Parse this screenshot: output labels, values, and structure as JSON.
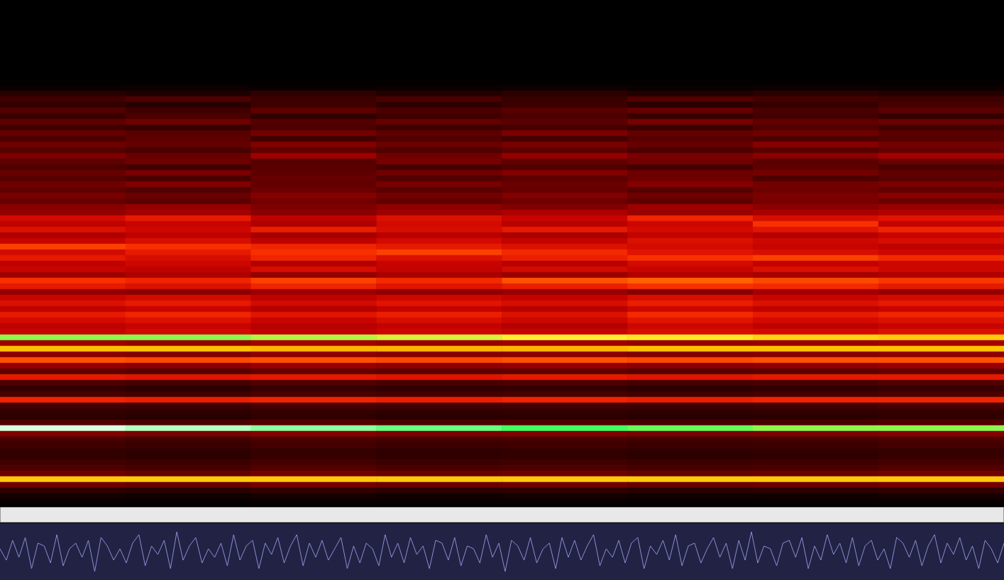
{
  "chart_data": [
    {
      "type": "heatmap",
      "tick_labels": false,
      "color_range": [
        0,
        100
      ],
      "cells": [
        [
          0,
          0,
          0,
          0,
          0,
          0,
          0,
          0
        ],
        [
          0,
          0,
          0,
          0,
          0,
          0,
          0,
          0
        ],
        [
          0,
          0,
          0,
          0,
          0,
          0,
          0,
          0
        ],
        [
          0,
          0,
          0,
          0,
          0,
          0,
          0,
          0
        ],
        [
          0,
          0,
          0,
          0,
          0,
          0,
          0,
          0
        ],
        [
          0,
          0,
          0,
          0,
          0,
          0,
          0,
          0
        ],
        [
          0,
          0,
          0,
          0,
          0,
          0,
          0,
          0
        ],
        [
          0,
          0,
          0,
          0,
          0,
          0,
          0,
          0
        ],
        [
          0,
          0,
          0,
          0,
          0,
          0,
          0,
          0
        ],
        [
          0,
          0,
          0,
          0,
          0,
          0,
          0,
          0
        ],
        [
          0,
          0,
          0,
          0,
          0,
          0,
          0,
          0
        ],
        [
          0,
          0,
          0,
          0,
          0,
          0,
          0,
          0
        ],
        [
          0,
          0,
          0,
          0,
          0,
          0,
          0,
          0
        ],
        [
          0,
          0,
          0,
          0,
          0,
          0,
          0,
          0
        ],
        [
          3,
          2,
          4,
          3,
          2,
          4,
          3,
          3
        ],
        [
          8,
          10,
          7,
          9,
          11,
          8,
          10,
          9
        ],
        [
          22,
          18,
          25,
          20,
          24,
          19,
          23,
          21
        ],
        [
          30,
          34,
          28,
          33,
          27,
          35,
          31,
          29
        ],
        [
          26,
          22,
          30,
          24,
          29,
          23,
          27,
          32
        ],
        [
          35,
          30,
          38,
          33,
          36,
          40,
          32,
          37
        ],
        [
          28,
          33,
          25,
          30,
          34,
          27,
          31,
          26
        ],
        [
          38,
          42,
          35,
          40,
          37,
          44,
          39,
          41
        ],
        [
          30,
          27,
          34,
          29,
          32,
          28,
          35,
          30
        ],
        [
          40,
          36,
          43,
          38,
          45,
          39,
          42,
          37
        ],
        [
          33,
          38,
          30,
          35,
          31,
          37,
          34,
          36
        ],
        [
          42,
          39,
          46,
          41,
          44,
          40,
          47,
          43
        ],
        [
          36,
          33,
          39,
          35,
          38,
          34,
          37,
          40
        ],
        [
          45,
          40,
          52,
          42,
          50,
          44,
          48,
          53
        ],
        [
          38,
          42,
          36,
          44,
          39,
          43,
          37,
          41
        ],
        [
          34,
          30,
          37,
          32,
          35,
          31,
          38,
          33
        ],
        [
          40,
          44,
          38,
          42,
          46,
          41,
          43,
          39
        ],
        [
          36,
          33,
          40,
          35,
          38,
          42,
          34,
          37
        ],
        [
          42,
          46,
          39,
          44,
          41,
          47,
          43,
          45
        ],
        [
          38,
          35,
          41,
          37,
          40,
          36,
          42,
          39
        ],
        [
          44,
          41,
          47,
          43,
          46,
          42,
          45,
          48
        ],
        [
          40,
          37,
          43,
          39,
          42,
          38,
          44,
          41
        ],
        [
          47,
          50,
          45,
          49,
          46,
          52,
          48,
          51
        ],
        [
          50,
          53,
          48,
          52,
          55,
          51,
          54,
          56
        ],
        [
          62,
          66,
          58,
          64,
          60,
          68,
          63,
          65
        ],
        [
          58,
          60,
          55,
          62,
          57,
          61,
          70,
          59
        ],
        [
          64,
          61,
          67,
          63,
          66,
          62,
          65,
          68
        ],
        [
          55,
          58,
          53,
          57,
          54,
          59,
          56,
          60
        ],
        [
          60,
          63,
          58,
          62,
          59,
          64,
          61,
          63
        ],
        [
          72,
          70,
          68,
          66,
          64,
          62,
          60,
          58
        ],
        [
          62,
          66,
          70,
          72,
          69,
          65,
          63,
          61
        ],
        [
          66,
          63,
          68,
          64,
          67,
          70,
          72,
          69
        ],
        [
          58,
          61,
          56,
          60,
          57,
          62,
          59,
          61
        ],
        [
          60,
          58,
          63,
          59,
          62,
          60,
          64,
          61
        ],
        [
          52,
          55,
          50,
          54,
          51,
          56,
          53,
          55
        ],
        [
          70,
          68,
          72,
          69,
          74,
          76,
          73,
          71
        ],
        [
          66,
          64,
          68,
          65,
          67,
          70,
          69,
          66
        ],
        [
          50,
          48,
          52,
          49,
          51,
          47,
          53,
          50
        ],
        [
          60,
          62,
          58,
          61,
          59,
          63,
          60,
          62
        ],
        [
          64,
          66,
          62,
          65,
          63,
          67,
          64,
          66
        ],
        [
          58,
          60,
          56,
          59,
          57,
          61,
          58,
          60
        ],
        [
          66,
          68,
          65,
          67,
          64,
          69,
          66,
          68
        ],
        [
          62,
          64,
          60,
          63,
          61,
          65,
          62,
          64
        ],
        [
          58,
          60,
          57,
          59,
          56,
          61,
          58,
          60
        ],
        [
          60,
          62,
          59,
          61,
          60,
          63,
          62,
          64
        ],
        [
          93,
          93,
          92,
          91,
          90,
          89,
          87,
          86
        ],
        [
          52,
          50,
          53,
          51,
          52,
          50,
          51,
          53
        ],
        [
          85,
          85,
          84,
          84,
          84,
          85,
          85,
          85
        ],
        [
          48,
          46,
          49,
          47,
          48,
          46,
          47,
          49
        ],
        [
          74,
          73,
          74,
          73,
          74,
          73,
          74,
          74
        ],
        [
          50,
          48,
          51,
          49,
          50,
          48,
          49,
          51
        ],
        [
          38,
          36,
          39,
          37,
          38,
          36,
          37,
          39
        ],
        [
          66,
          65,
          66,
          65,
          66,
          65,
          66,
          66
        ],
        [
          34,
          32,
          35,
          33,
          34,
          32,
          33,
          35
        ],
        [
          26,
          24,
          27,
          25,
          26,
          24,
          25,
          27
        ],
        [
          32,
          30,
          33,
          31,
          32,
          30,
          31,
          33
        ],
        [
          68,
          67,
          68,
          67,
          68,
          67,
          68,
          68
        ],
        [
          32,
          30,
          33,
          31,
          32,
          30,
          31,
          33
        ],
        [
          26,
          25,
          27,
          25,
          26,
          25,
          26,
          27
        ],
        [
          24,
          22,
          25,
          23,
          24,
          22,
          23,
          25
        ],
        [
          34,
          32,
          35,
          33,
          34,
          32,
          33,
          35
        ],
        [
          99,
          98,
          97,
          96,
          95,
          94,
          93,
          93
        ],
        [
          46,
          44,
          47,
          45,
          46,
          44,
          45,
          47
        ],
        [
          32,
          30,
          33,
          31,
          32,
          30,
          31,
          33
        ],
        [
          30,
          28,
          31,
          29,
          30,
          28,
          29,
          31
        ],
        [
          26,
          25,
          27,
          25,
          26,
          25,
          26,
          27
        ],
        [
          26,
          24,
          27,
          25,
          26,
          24,
          25,
          27
        ],
        [
          30,
          28,
          31,
          29,
          30,
          28,
          29,
          31
        ],
        [
          34,
          32,
          35,
          33,
          34,
          32,
          33,
          35
        ],
        [
          42,
          40,
          43,
          41,
          42,
          40,
          41,
          43
        ],
        [
          86,
          86,
          86,
          86,
          86,
          86,
          86,
          86
        ],
        [
          42,
          40,
          43,
          41,
          42,
          40,
          41,
          43
        ],
        [
          24,
          22,
          25,
          23,
          24,
          22,
          23,
          25
        ],
        [
          14,
          12,
          15,
          13,
          14,
          12,
          13,
          15
        ],
        [
          6,
          5,
          7,
          6,
          6,
          5,
          6,
          7
        ]
      ]
    },
    {
      "type": "line",
      "tick_labels": false,
      "ylim": [
        -1,
        1
      ],
      "color": "#8c8fd6",
      "values": [
        0.1,
        -0.3,
        0.4,
        -0.2,
        0.5,
        -0.6,
        0.3,
        0.2,
        -0.4,
        0.6,
        -0.5,
        0.1,
        0.3,
        -0.2,
        0.4,
        -0.7,
        0.5,
        0.2,
        -0.3,
        0.1,
        -0.4,
        0.3,
        0.6,
        -0.5,
        0.2,
        -0.1,
        0.4,
        -0.6,
        0.7,
        -0.3,
        0.2,
        0.5,
        -0.4,
        0.1,
        -0.2,
        0.3,
        -0.5,
        0.6,
        -0.3,
        0.2,
        0.4,
        -0.6,
        0.3,
        -0.1,
        0.5,
        -0.4,
        0.2,
        0.6,
        -0.5,
        0.3,
        -0.2,
        0.4,
        -0.3,
        0.1,
        0.5,
        -0.6,
        0.2,
        -0.4,
        0.3,
        0.1,
        -0.5,
        0.6,
        -0.2,
        0.3,
        -0.4,
        0.5,
        -0.1,
        0.2,
        -0.6,
        0.4,
        0.3,
        -0.3,
        0.5,
        -0.5,
        0.2,
        0.1,
        -0.4,
        0.6,
        -0.2,
        0.3,
        -0.7,
        0.4,
        0.2,
        -0.3,
        0.5,
        -0.4,
        0.1,
        0.3,
        -0.6,
        0.5,
        -0.2,
        0.4,
        -0.3,
        0.2,
        0.6,
        -0.5,
        0.1,
        -0.2,
        0.4,
        -0.4,
        0.3,
        0.5,
        -0.6,
        0.2,
        -0.1,
        0.4,
        -0.3,
        0.6,
        -0.5,
        0.2,
        0.3,
        -0.4,
        0.1,
        0.5,
        -0.2,
        0.3,
        -0.6,
        0.4,
        -0.3,
        0.7,
        -0.4,
        0.2,
        0.1,
        -0.5,
        0.3,
        0.4,
        -0.2,
        0.5,
        -0.6,
        0.2,
        -0.3,
        0.6,
        -0.1,
        0.3,
        -0.4,
        0.5,
        -0.5,
        0.2,
        0.4,
        -0.3,
        0.1,
        -0.6,
        0.5,
        0.3,
        -0.2,
        0.4,
        -0.5,
        0.2,
        0.6,
        -0.4,
        0.3,
        -0.1,
        0.5,
        -0.3,
        0.2,
        -0.6,
        0.4,
        0.1,
        -0.4,
        0.3
      ]
    }
  ]
}
